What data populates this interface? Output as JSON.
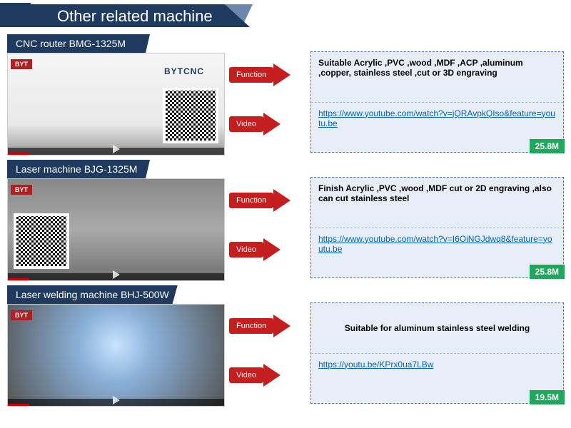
{
  "header": {
    "title": "Other related machine"
  },
  "machines": [
    {
      "title": "CNC router BMG-1325M",
      "brand_tag": "BYT",
      "bg_label": "BYTCNC",
      "function_label": "Function",
      "video_label": "Video",
      "function_text": "Suitable Acrylic ,PVC ,wood ,MDF ,ACP ,aluminum ,copper, stainless steel ,cut or 3D engraving",
      "video_url": "https://www.youtube.com/watch?v=jQRAvpkQIso&feature=youtu.be",
      "badge": "25.8M",
      "qr_side": "right",
      "center_func": false
    },
    {
      "title": "Laser machine BJG-1325M",
      "brand_tag": "BYT",
      "bg_label": "",
      "function_label": "Function",
      "video_label": "Video",
      "function_text": "Finish Acrylic ,PVC ,wood ,MDF cut or 2D engraving ,also can cut stainless steel",
      "video_url": "https://www.youtube.com/watch?v=I6OiNGJdwq8&feature=youtu.be",
      "badge": "25.8M",
      "qr_side": "left",
      "center_func": false
    },
    {
      "title": "Laser welding machine BHJ-500W",
      "brand_tag": "BYT",
      "bg_label": "",
      "function_label": "Function",
      "video_label": "Video",
      "function_text": "Suitable for aluminum stainless steel welding",
      "video_url": "https://youtu.be/KPrx0ua7LBw",
      "badge": "19.5M",
      "qr_side": "none",
      "center_func": true
    }
  ],
  "style": {
    "header_bg": "#1e3a5f",
    "arrow_bg": "#c41e1e",
    "info_bg": "#e8eef8",
    "info_border": "#4472c4",
    "badge_bg": "#1fa85a",
    "link_color": "#0563c1"
  }
}
